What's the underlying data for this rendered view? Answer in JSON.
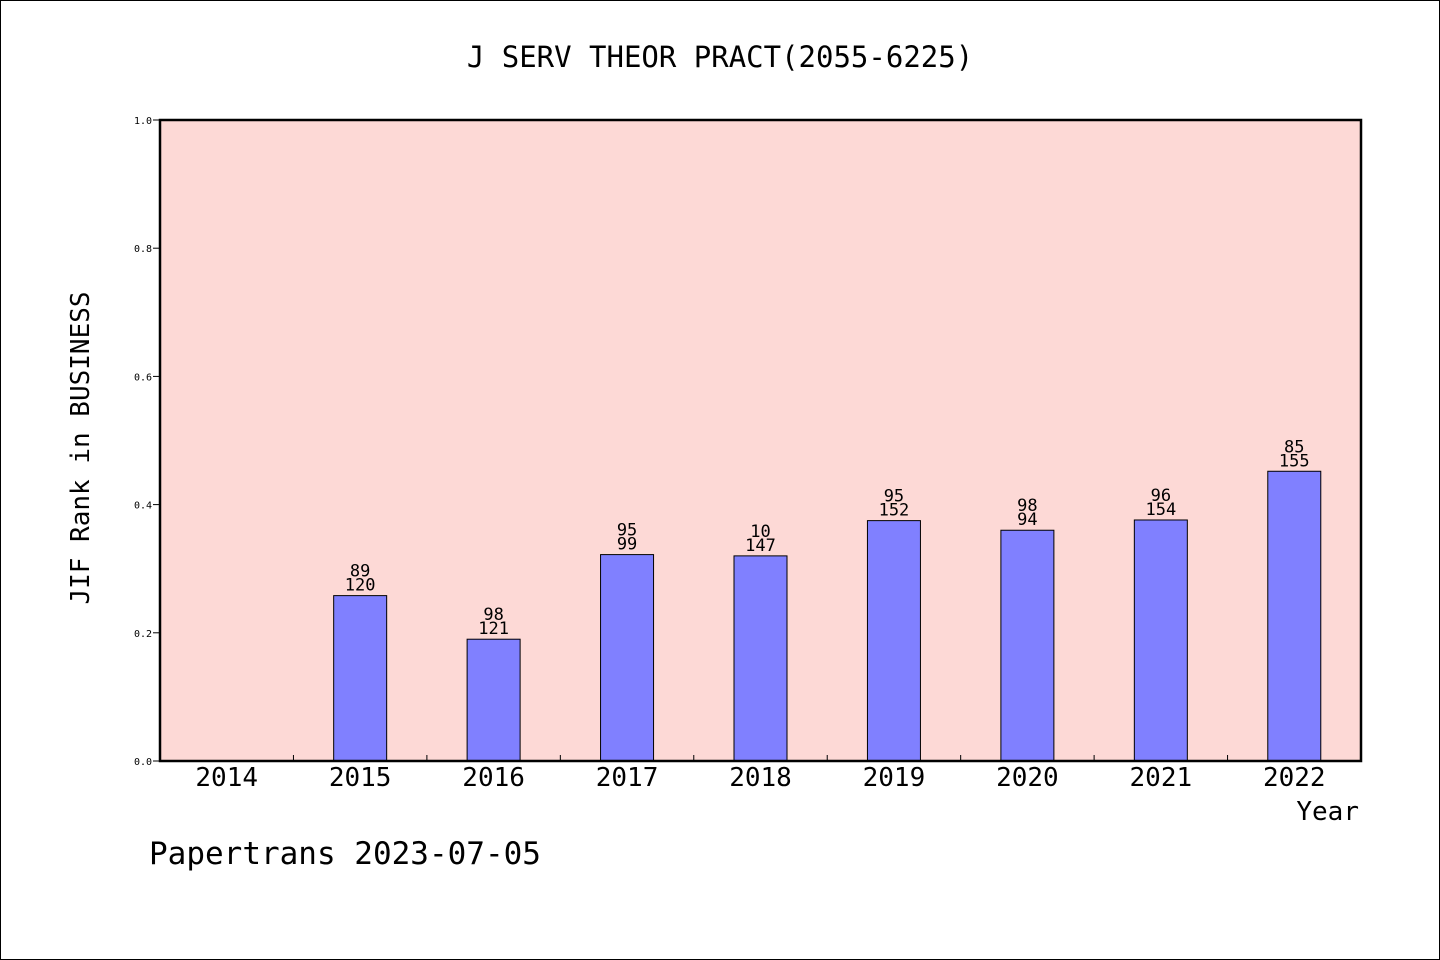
{
  "chart_data": {
    "type": "bar",
    "title": "J SERV THEOR PRACT(2055-6225)",
    "xlabel": "Year",
    "ylabel": "JIF Rank in BUSINESS",
    "footer": "Papertrans 2023-07-05",
    "categories": [
      "2014",
      "2015",
      "2016",
      "2017",
      "2018",
      "2019",
      "2020",
      "2021",
      "2022"
    ],
    "values": [
      null,
      0.258,
      0.19,
      0.322,
      0.32,
      0.375,
      0.36,
      0.376,
      0.452
    ],
    "label_top": [
      "",
      "89",
      "98",
      "95",
      "10",
      "95",
      "98",
      "96",
      "85"
    ],
    "label_bottom": [
      "",
      "120",
      "121",
      "99",
      "147",
      "152",
      "94",
      "154",
      "155"
    ],
    "ylim": [
      0,
      1.0
    ],
    "yticks": [
      "0.0",
      "0.2",
      "0.4",
      "0.6",
      "0.8",
      "1.0"
    ],
    "grid": false,
    "colors": {
      "plot_background": "#fdd9d6",
      "bar_fill": "#8080ff",
      "bar_stroke": "#000000",
      "axis": "#000000"
    }
  }
}
